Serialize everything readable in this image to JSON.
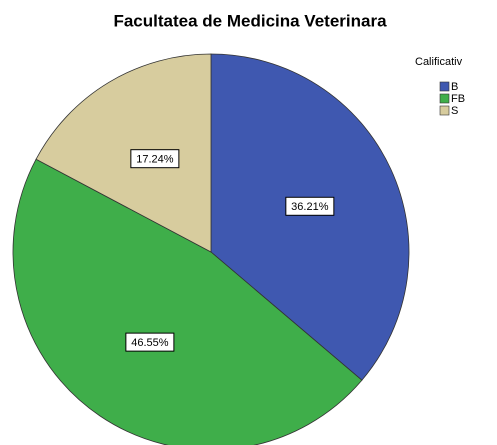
{
  "chart_data": {
    "type": "pie",
    "title": "Facultatea de Medicina Veterinara",
    "legend_title": "Calificativ",
    "categories": [
      "B",
      "FB",
      "S"
    ],
    "values": [
      36.21,
      46.55,
      17.24
    ],
    "value_labels": [
      "36.21%",
      "46.55%",
      "17.24%"
    ],
    "colors": [
      "#3f58b0",
      "#3fae4a",
      "#d7cc9e"
    ],
    "legend": "top-right"
  }
}
